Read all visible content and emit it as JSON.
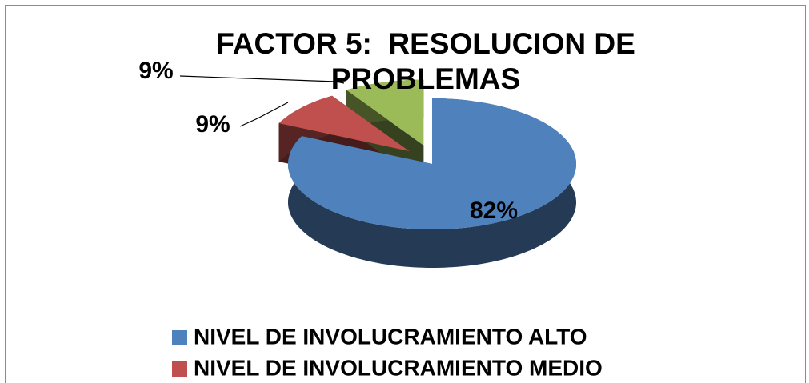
{
  "chart_data": {
    "type": "pie",
    "title": "FACTOR 5:  RESOLUCION DE PROBLEMAS",
    "categories": [
      "NIVEL DE INVOLUCRAMIENTO ALTO",
      "NIVEL DE INVOLUCRAMIENTO MEDIO",
      null
    ],
    "values": [
      82,
      9,
      9
    ],
    "value_labels": [
      "82%",
      "9%",
      "9%"
    ],
    "colors": [
      "#4f81bd",
      "#c0504d",
      "#9bbb59"
    ],
    "legend": "bottom"
  }
}
